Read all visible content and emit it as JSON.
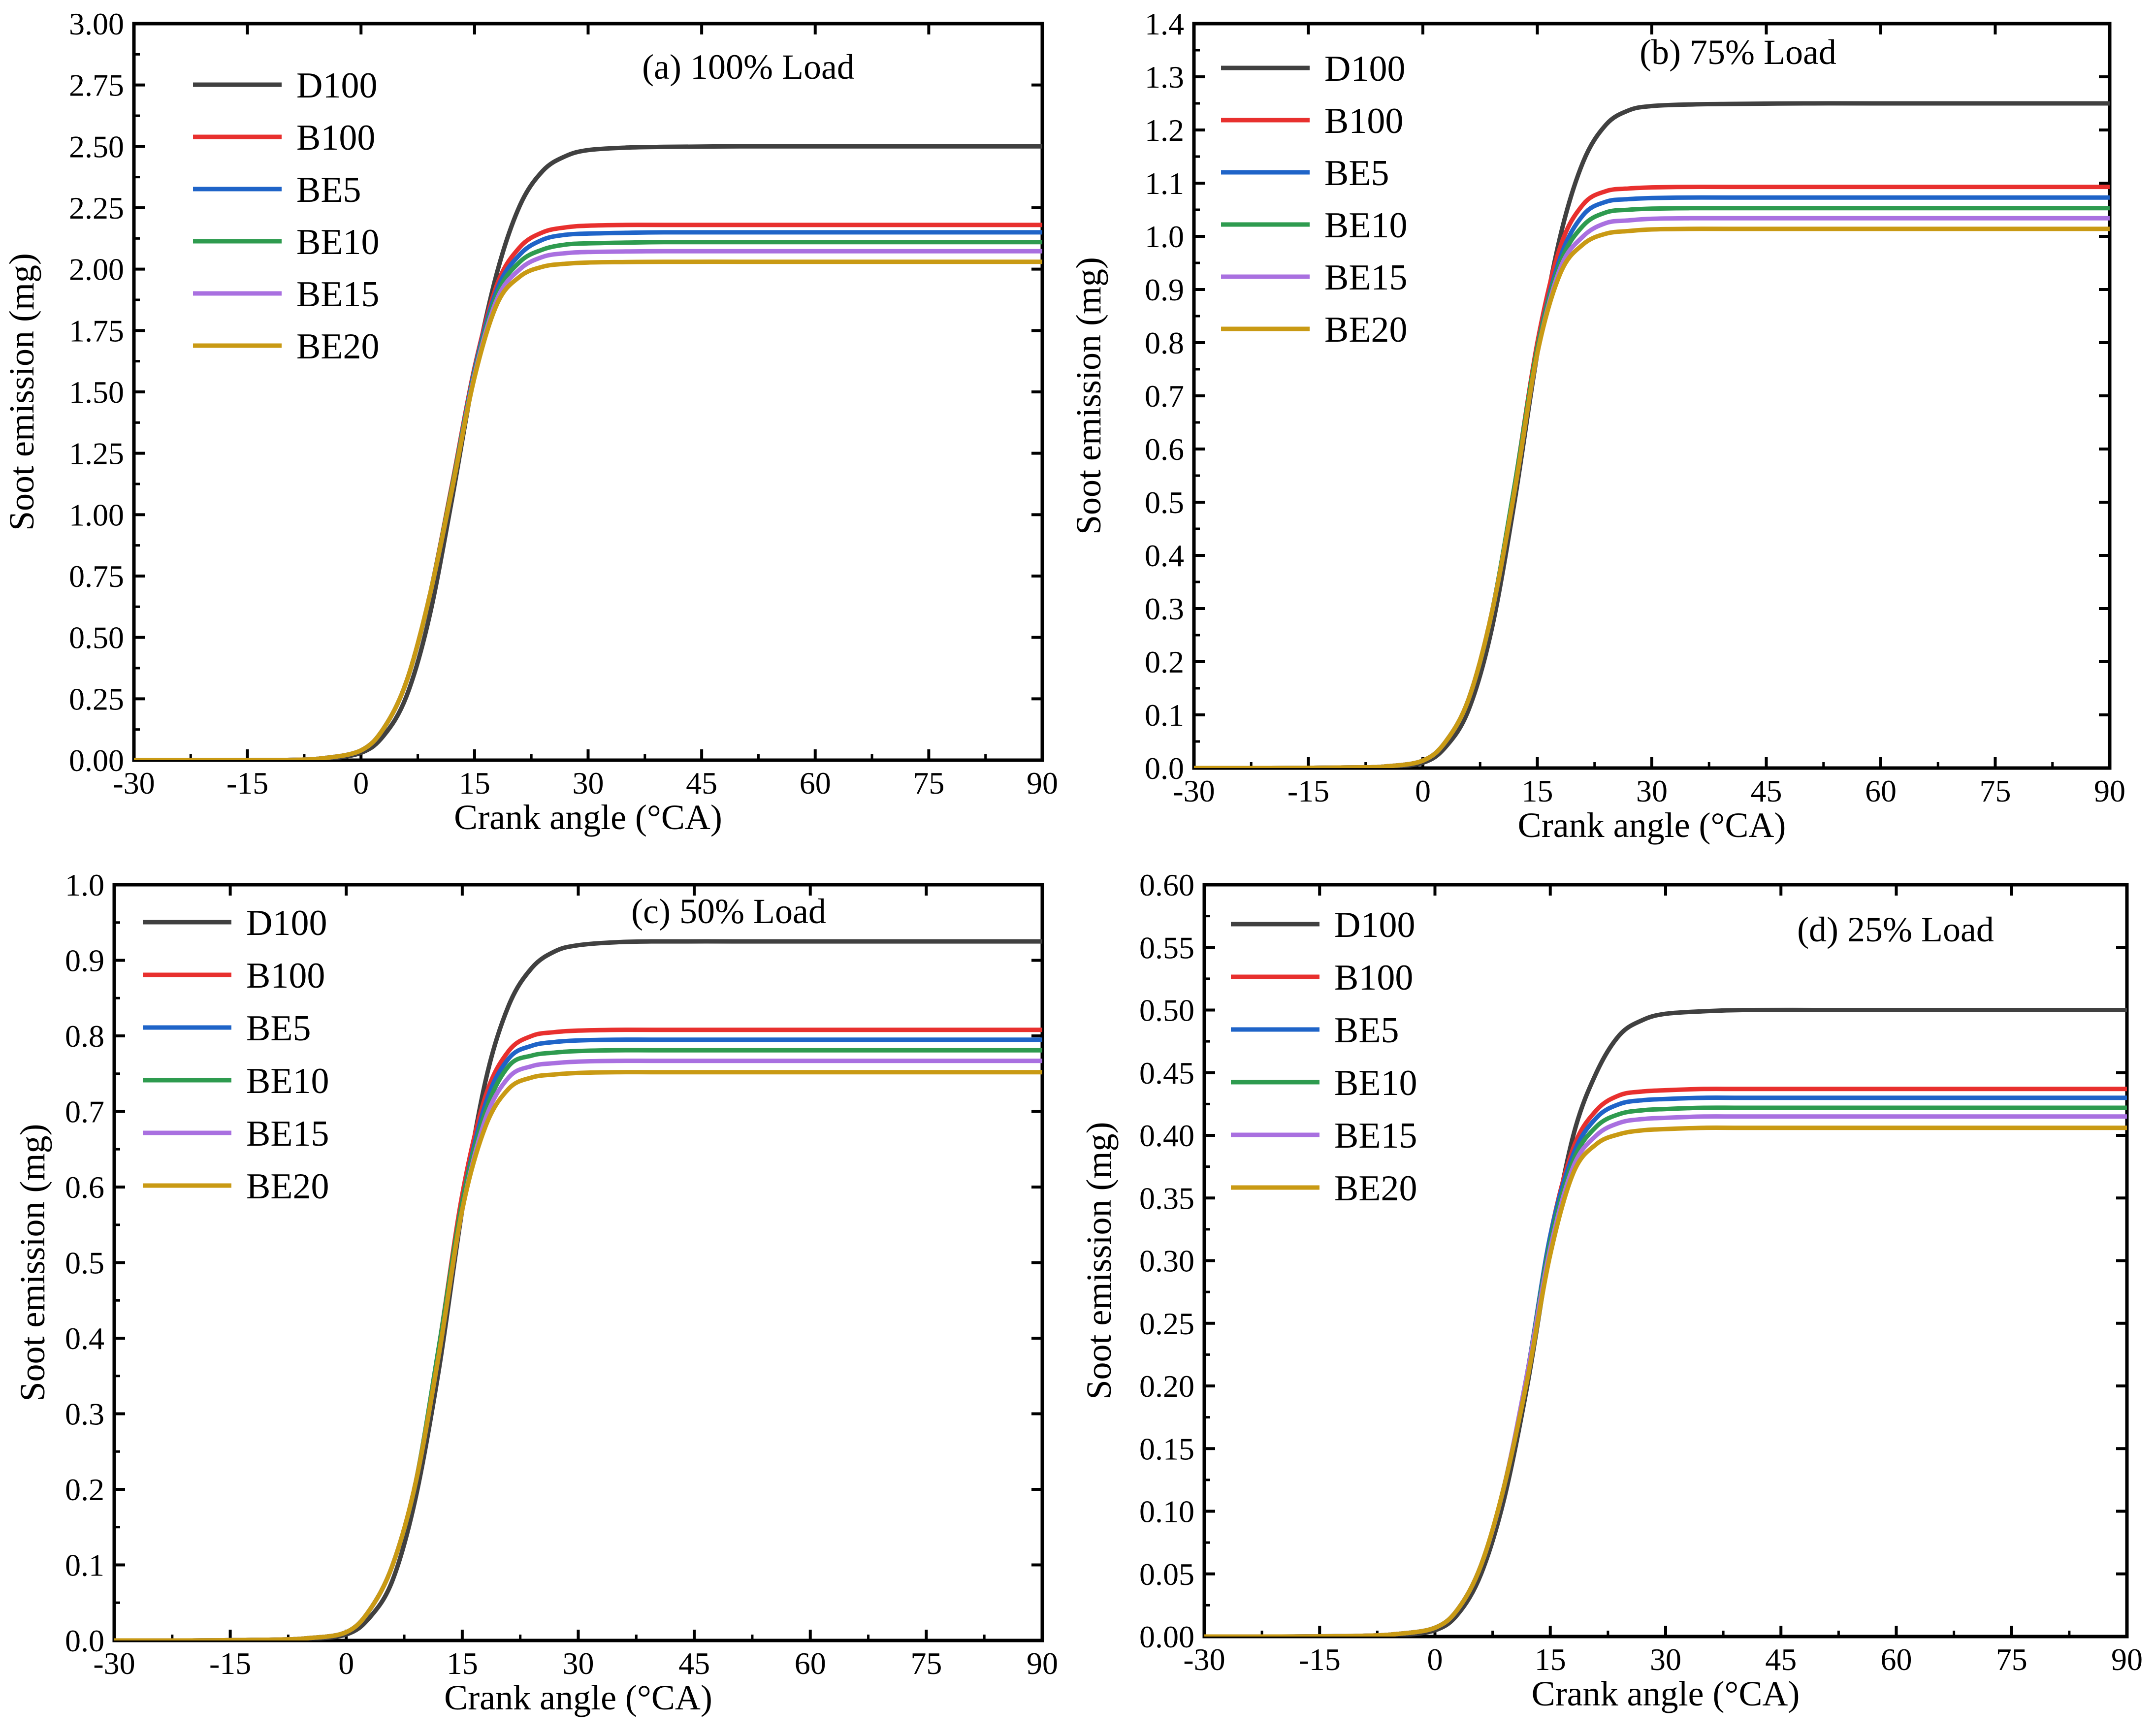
{
  "chart_data": [
    {
      "type": "line",
      "title": "(a) 100% Load",
      "xlabel": "Crank angle (°CA)",
      "ylabel": "Soot emission (mg)",
      "xlim": [
        -30,
        90
      ],
      "ylim": [
        0,
        3.0
      ],
      "xticks": [
        "-30",
        "-15",
        "0",
        "15",
        "30",
        "45",
        "60",
        "75",
        "90"
      ],
      "yticks": [
        "0.00",
        "0.25",
        "0.50",
        "0.75",
        "1.00",
        "1.25",
        "1.50",
        "1.75",
        "2.00",
        "2.25",
        "2.50",
        "2.75",
        "3.00"
      ],
      "legend_position": "top-left",
      "x": [
        -30,
        -20,
        -10,
        -5,
        0,
        3,
        6,
        9,
        12,
        15,
        18,
        21,
        24,
        27,
        30,
        35,
        40,
        50,
        60,
        75,
        90
      ],
      "series": [
        {
          "name": "D100",
          "color": "#404040",
          "values": [
            0,
            0,
            0.001,
            0.005,
            0.03,
            0.1,
            0.26,
            0.58,
            1.06,
            1.58,
            1.99,
            2.26,
            2.4,
            2.46,
            2.485,
            2.495,
            2.498,
            2.5,
            2.5,
            2.5,
            2.5
          ]
        },
        {
          "name": "B100",
          "color": "#e8302e",
          "values": [
            0,
            0,
            0.001,
            0.008,
            0.04,
            0.13,
            0.32,
            0.66,
            1.12,
            1.6,
            1.94,
            2.09,
            2.15,
            2.17,
            2.177,
            2.18,
            2.18,
            2.18,
            2.18,
            2.18,
            2.18
          ]
        },
        {
          "name": "BE5",
          "color": "#1f64c8",
          "values": [
            0,
            0,
            0.001,
            0.008,
            0.04,
            0.13,
            0.32,
            0.66,
            1.11,
            1.59,
            1.92,
            2.06,
            2.12,
            2.14,
            2.145,
            2.148,
            2.15,
            2.15,
            2.15,
            2.15,
            2.15
          ]
        },
        {
          "name": "BE10",
          "color": "#2e9b4f",
          "values": [
            0,
            0,
            0.001,
            0.008,
            0.04,
            0.13,
            0.32,
            0.66,
            1.11,
            1.58,
            1.9,
            2.03,
            2.08,
            2.1,
            2.105,
            2.108,
            2.11,
            2.11,
            2.11,
            2.11,
            2.11
          ]
        },
        {
          "name": "BE15",
          "color": "#a970e0",
          "values": [
            0,
            0,
            0.001,
            0.008,
            0.04,
            0.13,
            0.32,
            0.66,
            1.1,
            1.57,
            1.88,
            2.0,
            2.05,
            2.065,
            2.07,
            2.072,
            2.073,
            2.073,
            2.073,
            2.073,
            2.073
          ]
        },
        {
          "name": "BE20",
          "color": "#c99a14",
          "values": [
            0,
            0,
            0.001,
            0.008,
            0.04,
            0.13,
            0.32,
            0.66,
            1.1,
            1.56,
            1.86,
            1.97,
            2.01,
            2.022,
            2.027,
            2.029,
            2.03,
            2.03,
            2.03,
            2.03,
            2.03
          ]
        }
      ]
    },
    {
      "type": "line",
      "title": "(b) 75% Load",
      "xlabel": "Crank angle (°CA)",
      "ylabel": "Soot emission (mg)",
      "xlim": [
        -30,
        90
      ],
      "ylim": [
        0,
        1.4
      ],
      "xticks": [
        "-30",
        "-15",
        "0",
        "15",
        "30",
        "45",
        "60",
        "75",
        "90"
      ],
      "yticks": [
        "0.0",
        "0.1",
        "0.2",
        "0.3",
        "0.4",
        "0.5",
        "0.6",
        "0.7",
        "0.8",
        "0.9",
        "1.0",
        "1.1",
        "1.2",
        "1.3",
        "1.4"
      ],
      "legend_position": "top-left",
      "x": [
        -30,
        -20,
        -10,
        -5,
        0,
        3,
        6,
        9,
        12,
        15,
        18,
        21,
        24,
        27,
        30,
        35,
        40,
        50,
        60,
        75,
        90
      ],
      "series": [
        {
          "name": "D100",
          "color": "#404040",
          "values": [
            0,
            0,
            0.001,
            0.002,
            0.01,
            0.04,
            0.11,
            0.26,
            0.5,
            0.78,
            1.0,
            1.14,
            1.21,
            1.237,
            1.245,
            1.248,
            1.249,
            1.25,
            1.25,
            1.25,
            1.25
          ]
        },
        {
          "name": "B100",
          "color": "#e8302e",
          "values": [
            0,
            0,
            0.001,
            0.003,
            0.014,
            0.05,
            0.13,
            0.29,
            0.53,
            0.8,
            0.98,
            1.06,
            1.085,
            1.09,
            1.092,
            1.093,
            1.093,
            1.093,
            1.093,
            1.093,
            1.093
          ]
        },
        {
          "name": "BE5",
          "color": "#1f64c8",
          "values": [
            0,
            0,
            0.001,
            0.003,
            0.014,
            0.05,
            0.13,
            0.29,
            0.53,
            0.79,
            0.96,
            1.04,
            1.065,
            1.07,
            1.072,
            1.073,
            1.073,
            1.073,
            1.073,
            1.073,
            1.073
          ]
        },
        {
          "name": "BE10",
          "color": "#2e9b4f",
          "values": [
            0,
            0,
            0.001,
            0.003,
            0.014,
            0.05,
            0.13,
            0.29,
            0.53,
            0.79,
            0.95,
            1.02,
            1.045,
            1.05,
            1.052,
            1.053,
            1.053,
            1.053,
            1.053,
            1.053,
            1.053
          ]
        },
        {
          "name": "BE15",
          "color": "#a970e0",
          "values": [
            0,
            0,
            0.001,
            0.003,
            0.014,
            0.05,
            0.13,
            0.29,
            0.52,
            0.78,
            0.94,
            1.0,
            1.025,
            1.03,
            1.033,
            1.034,
            1.034,
            1.034,
            1.034,
            1.034,
            1.034
          ]
        },
        {
          "name": "BE20",
          "color": "#c99a14",
          "values": [
            0,
            0,
            0.001,
            0.003,
            0.014,
            0.05,
            0.13,
            0.29,
            0.52,
            0.78,
            0.93,
            0.985,
            1.005,
            1.01,
            1.013,
            1.014,
            1.014,
            1.014,
            1.014,
            1.014,
            1.014
          ]
        }
      ]
    },
    {
      "type": "line",
      "title": "(c) 50% Load",
      "xlabel": "Crank angle (°CA)",
      "ylabel": "Soot emission (mg)",
      "xlim": [
        -30,
        90
      ],
      "ylim": [
        0,
        1.0
      ],
      "xticks": [
        "-30",
        "-15",
        "0",
        "15",
        "30",
        "45",
        "60",
        "75",
        "90"
      ],
      "yticks": [
        "0.0",
        "0.1",
        "0.2",
        "0.3",
        "0.4",
        "0.5",
        "0.6",
        "0.7",
        "0.8",
        "0.9",
        "1.0"
      ],
      "legend_position": "top-left",
      "x": [
        -30,
        -20,
        -10,
        -5,
        0,
        3,
        6,
        9,
        12,
        15,
        18,
        21,
        24,
        27,
        30,
        35,
        40,
        50,
        60,
        75,
        90
      ],
      "series": [
        {
          "name": "D100",
          "color": "#404040",
          "values": [
            0,
            0,
            0.001,
            0.002,
            0.008,
            0.03,
            0.08,
            0.19,
            0.36,
            0.57,
            0.74,
            0.84,
            0.89,
            0.912,
            0.92,
            0.924,
            0.925,
            0.925,
            0.925,
            0.925,
            0.925
          ]
        },
        {
          "name": "B100",
          "color": "#e8302e",
          "values": [
            0,
            0,
            0.001,
            0.003,
            0.011,
            0.04,
            0.1,
            0.21,
            0.39,
            0.59,
            0.72,
            0.78,
            0.8,
            0.805,
            0.807,
            0.808,
            0.808,
            0.808,
            0.808,
            0.808,
            0.808
          ]
        },
        {
          "name": "BE5",
          "color": "#1f64c8",
          "values": [
            0,
            0,
            0.001,
            0.003,
            0.011,
            0.04,
            0.1,
            0.21,
            0.39,
            0.58,
            0.71,
            0.77,
            0.787,
            0.792,
            0.794,
            0.795,
            0.795,
            0.795,
            0.795,
            0.795,
            0.795
          ]
        },
        {
          "name": "BE10",
          "color": "#2e9b4f",
          "values": [
            0,
            0,
            0.001,
            0.003,
            0.011,
            0.04,
            0.1,
            0.21,
            0.39,
            0.58,
            0.7,
            0.76,
            0.774,
            0.778,
            0.78,
            0.781,
            0.781,
            0.781,
            0.781,
            0.781,
            0.781
          ]
        },
        {
          "name": "BE15",
          "color": "#a970e0",
          "values": [
            0,
            0,
            0.001,
            0.003,
            0.011,
            0.04,
            0.1,
            0.21,
            0.38,
            0.57,
            0.69,
            0.745,
            0.76,
            0.764,
            0.766,
            0.767,
            0.767,
            0.767,
            0.767,
            0.767,
            0.767
          ]
        },
        {
          "name": "BE20",
          "color": "#c99a14",
          "values": [
            0,
            0,
            0.001,
            0.003,
            0.011,
            0.04,
            0.1,
            0.21,
            0.38,
            0.57,
            0.68,
            0.73,
            0.745,
            0.749,
            0.751,
            0.752,
            0.752,
            0.752,
            0.752,
            0.752,
            0.752
          ]
        }
      ]
    },
    {
      "type": "line",
      "title": "(d) 25% Load",
      "xlabel": "Crank angle (°CA)",
      "ylabel": "Soot emission (mg)",
      "xlim": [
        -30,
        90
      ],
      "ylim": [
        0,
        0.6
      ],
      "xticks": [
        "-30",
        "-15",
        "0",
        "15",
        "30",
        "45",
        "60",
        "75",
        "90"
      ],
      "yticks": [
        "0.00",
        "0.05",
        "0.10",
        "0.15",
        "0.20",
        "0.25",
        "0.30",
        "0.35",
        "0.40",
        "0.45",
        "0.50",
        "0.55",
        "0.60"
      ],
      "legend_position": "top-left",
      "x": [
        -30,
        -20,
        -10,
        -5,
        0,
        3,
        6,
        9,
        12,
        15,
        18,
        21,
        24,
        27,
        30,
        35,
        40,
        50,
        60,
        75,
        90
      ],
      "series": [
        {
          "name": "D100",
          "color": "#404040",
          "values": [
            0,
            0,
            0.0005,
            0.001,
            0.005,
            0.018,
            0.05,
            0.11,
            0.2,
            0.31,
            0.4,
            0.45,
            0.48,
            0.492,
            0.497,
            0.499,
            0.5,
            0.5,
            0.5,
            0.5,
            0.5
          ]
        },
        {
          "name": "B100",
          "color": "#e8302e",
          "values": [
            0,
            0,
            0.0005,
            0.002,
            0.007,
            0.022,
            0.057,
            0.12,
            0.21,
            0.32,
            0.39,
            0.42,
            0.432,
            0.435,
            0.436,
            0.437,
            0.437,
            0.437,
            0.437,
            0.437,
            0.437
          ]
        },
        {
          "name": "BE5",
          "color": "#1f64c8",
          "values": [
            0,
            0,
            0.0005,
            0.002,
            0.007,
            0.022,
            0.057,
            0.12,
            0.21,
            0.32,
            0.385,
            0.414,
            0.425,
            0.428,
            0.429,
            0.43,
            0.43,
            0.43,
            0.43,
            0.43,
            0.43
          ]
        },
        {
          "name": "BE10",
          "color": "#2e9b4f",
          "values": [
            0,
            0,
            0.0005,
            0.002,
            0.007,
            0.022,
            0.057,
            0.12,
            0.21,
            0.315,
            0.38,
            0.407,
            0.417,
            0.42,
            0.421,
            0.422,
            0.422,
            0.422,
            0.422,
            0.422,
            0.422
          ]
        },
        {
          "name": "BE15",
          "color": "#a970e0",
          "values": [
            0,
            0,
            0.0005,
            0.002,
            0.007,
            0.022,
            0.057,
            0.12,
            0.21,
            0.31,
            0.375,
            0.4,
            0.41,
            0.413,
            0.414,
            0.415,
            0.415,
            0.415,
            0.415,
            0.415,
            0.415
          ]
        },
        {
          "name": "BE20",
          "color": "#c99a14",
          "values": [
            0,
            0,
            0.0005,
            0.002,
            0.007,
            0.022,
            0.057,
            0.12,
            0.205,
            0.305,
            0.37,
            0.393,
            0.401,
            0.404,
            0.405,
            0.406,
            0.406,
            0.406,
            0.406,
            0.406,
            0.406
          ]
        }
      ]
    }
  ]
}
